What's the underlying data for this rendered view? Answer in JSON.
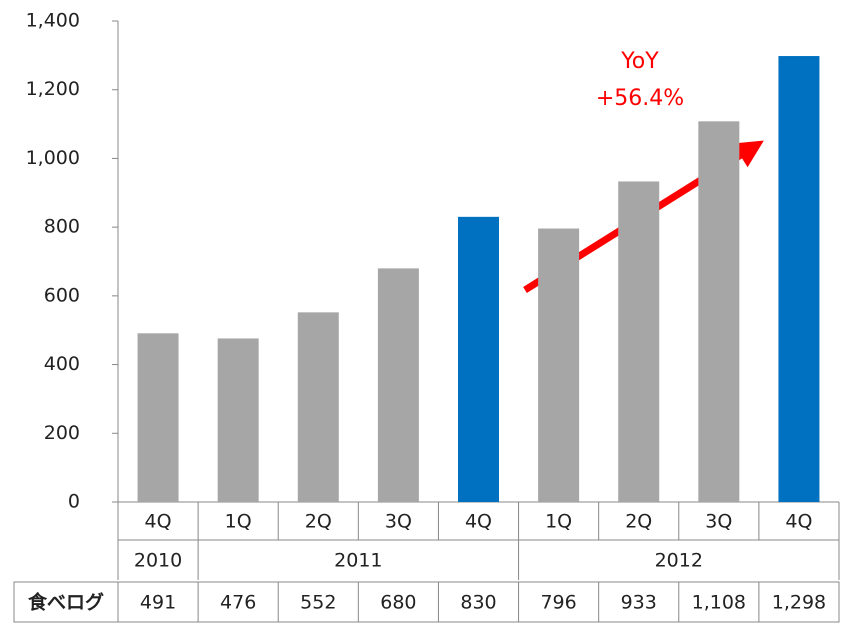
{
  "chart_data": {
    "type": "bar",
    "categories": [
      "4Q",
      "1Q",
      "2Q",
      "3Q",
      "4Q",
      "1Q",
      "2Q",
      "3Q",
      "4Q"
    ],
    "x_groups": [
      "2010",
      "2011",
      "2011",
      "2011",
      "2011",
      "2012",
      "2012",
      "2012",
      "2012"
    ],
    "series": [
      {
        "name": "食べログ",
        "values": [
          491,
          476,
          552,
          680,
          830,
          796,
          933,
          1108,
          1298
        ],
        "value_labels": [
          "491",
          "476",
          "552",
          "680",
          "830",
          "796",
          "933",
          "1,108",
          "1,298"
        ],
        "colors": [
          "#a6a6a6",
          "#a6a6a6",
          "#a6a6a6",
          "#a6a6a6",
          "#0070c0",
          "#a6a6a6",
          "#a6a6a6",
          "#a6a6a6",
          "#0070c0"
        ]
      }
    ],
    "ylim": [
      0,
      1400
    ],
    "yticks": [
      0,
      200,
      400,
      600,
      800,
      {
        "value": 1000,
        "label": "1,000"
      },
      {
        "value": 1200,
        "label": "1,200"
      },
      {
        "value": 1400,
        "label": "1,400"
      }
    ],
    "annotation": [
      "YoY",
      "+56.4%"
    ],
    "annotation_color": "#ff0000",
    "grid": false
  }
}
